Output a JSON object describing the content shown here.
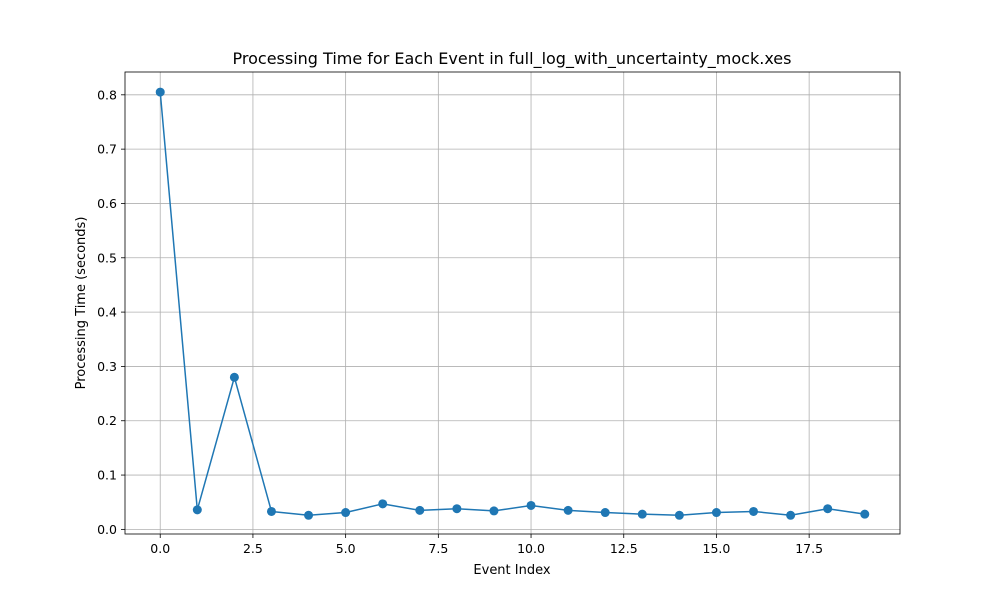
{
  "chart_data": {
    "type": "line",
    "title": "Processing Time for Each Event in full_log_with_uncertainty_mock.xes",
    "xlabel": "Event Index",
    "ylabel": "Processing Time (seconds)",
    "xlim": [
      -0.95,
      19.95
    ],
    "ylim": [
      -0.0085,
      0.842
    ],
    "grid": true,
    "line_color": "#1f77b4",
    "xticks": [
      0,
      2.5,
      5,
      7.5,
      10,
      12.5,
      15,
      17.5
    ],
    "xtick_labels": [
      "0.0",
      "2.5",
      "5.0",
      "7.5",
      "10.0",
      "12.5",
      "15.0",
      "17.5"
    ],
    "yticks": [
      0,
      0.1,
      0.2,
      0.3,
      0.4,
      0.5,
      0.6,
      0.7,
      0.8
    ],
    "ytick_labels": [
      "0.0",
      "0.1",
      "0.2",
      "0.3",
      "0.4",
      "0.5",
      "0.6",
      "0.7",
      "0.8"
    ],
    "series": [
      {
        "x": [
          0,
          1,
          2,
          3,
          4,
          5,
          6,
          7,
          8,
          9,
          10,
          11,
          12,
          13,
          14,
          15,
          16,
          17,
          18,
          19
        ],
        "values": [
          0.805,
          0.036,
          0.28,
          0.033,
          0.026,
          0.031,
          0.047,
          0.035,
          0.038,
          0.034,
          0.044,
          0.035,
          0.031,
          0.028,
          0.026,
          0.031,
          0.033,
          0.026,
          0.038,
          0.028
        ]
      }
    ]
  }
}
